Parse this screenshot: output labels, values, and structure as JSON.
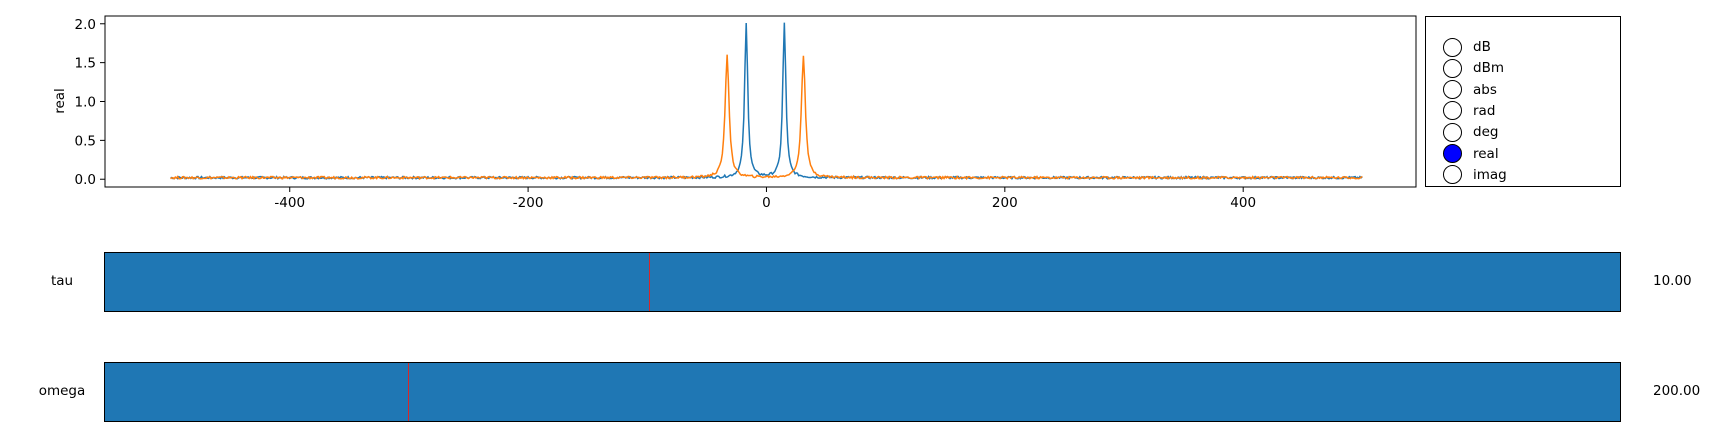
{
  "chart_data": {
    "type": "line",
    "ylabel": "real",
    "xlabel": "",
    "title": "",
    "xlim": [
      -555,
      545
    ],
    "ylim": [
      -0.1,
      2.1
    ],
    "xticks": [
      -400,
      -200,
      0,
      200,
      400
    ],
    "yticks": [
      0.0,
      0.5,
      1.0,
      1.5,
      2.0
    ],
    "ytick_labels": [
      "0.0",
      "0.5",
      "1.0",
      "1.5",
      "2.0"
    ],
    "x_range": [
      -500,
      500
    ],
    "grid": false,
    "series": [
      {
        "color": "#1f77b4",
        "peaks": [
          {
            "x": -17,
            "y": 2.0
          },
          {
            "x": 15,
            "y": 2.0
          }
        ],
        "baseline": 0.02,
        "width": 1.6
      },
      {
        "color": "#ff7f0e",
        "peaks": [
          {
            "x": -33,
            "y": 1.6
          },
          {
            "x": 31,
            "y": 1.6
          }
        ],
        "baseline": 0.02,
        "width": 2.0
      }
    ]
  },
  "radio": {
    "options": [
      "dB",
      "dBm",
      "abs",
      "rad",
      "deg",
      "real",
      "imag"
    ],
    "selected": "real",
    "active_color": "#0000ff"
  },
  "sliders": [
    {
      "label": "tau",
      "value": "10.00",
      "fraction": 0.359,
      "fill_color": "#1f77b4",
      "marker_color": "#d62728"
    },
    {
      "label": "omega",
      "value": "200.00",
      "fraction": 0.2,
      "fill_color": "#1f77b4",
      "marker_color": "#d62728"
    }
  ]
}
